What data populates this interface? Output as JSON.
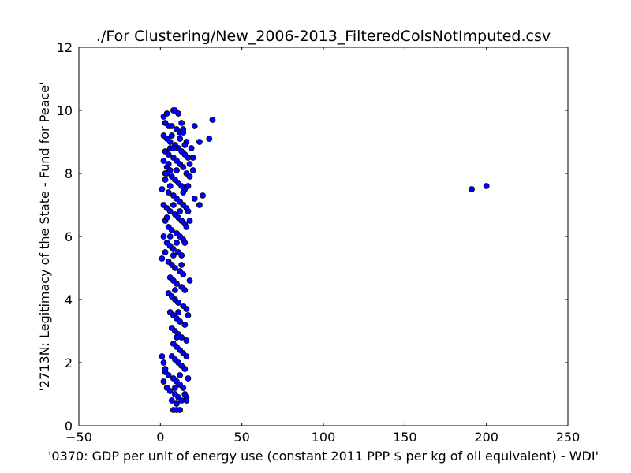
{
  "chart_data": {
    "type": "scatter",
    "title": "./For Clustering/New_2006-2013_FilteredColsNotImputed.csv",
    "xlabel": "'0370: GDP per unit of energy use  (constant 2011 PPP $ per kg of oil equivalent) - WDI'",
    "ylabel": "'2713N: Legitimacy of the State - Fund for Peace'",
    "xlim": [
      -50,
      250
    ],
    "ylim": [
      0,
      12
    ],
    "xticks": [
      -50,
      0,
      50,
      100,
      150,
      200,
      250
    ],
    "yticks": [
      0,
      2,
      4,
      6,
      8,
      10,
      12
    ],
    "grid": false,
    "marker_color": "#0000ff",
    "marker_edge": "#000000",
    "series": [
      {
        "points": [
          [
            191,
            7.5
          ],
          [
            200,
            7.6
          ],
          [
            32,
            9.7
          ],
          [
            30,
            9.1
          ],
          [
            24,
            9.0
          ],
          [
            21,
            9.5
          ],
          [
            26,
            7.3
          ],
          [
            24,
            7.0
          ],
          [
            21,
            7.2
          ],
          [
            20,
            8.1
          ],
          [
            19,
            8.8
          ],
          [
            18,
            8.3
          ],
          [
            20,
            8.5
          ],
          [
            18,
            6.5
          ],
          [
            17,
            6.8
          ],
          [
            18,
            4.6
          ],
          [
            8,
            10.0
          ],
          [
            9,
            10.0
          ],
          [
            2,
            9.8
          ],
          [
            3,
            9.6
          ],
          [
            5,
            9.5
          ],
          [
            7,
            9.5
          ],
          [
            10,
            9.4
          ],
          [
            12,
            9.3
          ],
          [
            14,
            9.4
          ],
          [
            16,
            9.0
          ],
          [
            2,
            9.2
          ],
          [
            4,
            9.1
          ],
          [
            6,
            9.0
          ],
          [
            9,
            8.9
          ],
          [
            11,
            8.8
          ],
          [
            13,
            8.7
          ],
          [
            15,
            8.6
          ],
          [
            17,
            8.5
          ],
          [
            3,
            8.7
          ],
          [
            5,
            8.6
          ],
          [
            8,
            8.5
          ],
          [
            10,
            8.4
          ],
          [
            12,
            8.3
          ],
          [
            14,
            8.2
          ],
          [
            2,
            8.4
          ],
          [
            4,
            8.2
          ],
          [
            6,
            8.1
          ],
          [
            16,
            8.0
          ],
          [
            7,
            7.9
          ],
          [
            9,
            7.8
          ],
          [
            11,
            7.7
          ],
          [
            13,
            7.6
          ],
          [
            15,
            7.5
          ],
          [
            3,
            7.8
          ],
          [
            1,
            7.5
          ],
          [
            5,
            7.4
          ],
          [
            8,
            7.3
          ],
          [
            10,
            7.2
          ],
          [
            12,
            7.1
          ],
          [
            14,
            7.0
          ],
          [
            16,
            6.9
          ],
          [
            2,
            7.0
          ],
          [
            4,
            6.9
          ],
          [
            6,
            6.8
          ],
          [
            9,
            6.7
          ],
          [
            11,
            6.6
          ],
          [
            13,
            6.5
          ],
          [
            15,
            6.4
          ],
          [
            3,
            6.5
          ],
          [
            5,
            6.3
          ],
          [
            7,
            6.2
          ],
          [
            10,
            6.1
          ],
          [
            12,
            6.0
          ],
          [
            14,
            5.9
          ],
          [
            2,
            6.0
          ],
          [
            4,
            5.8
          ],
          [
            6,
            5.7
          ],
          [
            8,
            5.6
          ],
          [
            11,
            5.5
          ],
          [
            13,
            5.4
          ],
          [
            3,
            5.5
          ],
          [
            1,
            5.3
          ],
          [
            5,
            5.2
          ],
          [
            7,
            5.1
          ],
          [
            9,
            5.0
          ],
          [
            12,
            4.9
          ],
          [
            14,
            4.8
          ],
          [
            6,
            4.7
          ],
          [
            8,
            4.6
          ],
          [
            10,
            4.5
          ],
          [
            13,
            4.4
          ],
          [
            15,
            4.3
          ],
          [
            5,
            4.2
          ],
          [
            7,
            4.1
          ],
          [
            9,
            4.0
          ],
          [
            11,
            3.9
          ],
          [
            14,
            3.8
          ],
          [
            16,
            3.7
          ],
          [
            6,
            3.6
          ],
          [
            8,
            3.5
          ],
          [
            10,
            3.4
          ],
          [
            12,
            3.3
          ],
          [
            15,
            3.2
          ],
          [
            7,
            3.1
          ],
          [
            9,
            3.0
          ],
          [
            11,
            2.9
          ],
          [
            13,
            2.8
          ],
          [
            16,
            2.7
          ],
          [
            8,
            2.6
          ],
          [
            10,
            2.5
          ],
          [
            12,
            2.4
          ],
          [
            14,
            2.3
          ],
          [
            7,
            2.2
          ],
          [
            9,
            2.1
          ],
          [
            11,
            2.0
          ],
          [
            13,
            1.9
          ],
          [
            15,
            1.8
          ],
          [
            3,
            1.7
          ],
          [
            5,
            1.6
          ],
          [
            8,
            1.5
          ],
          [
            10,
            1.4
          ],
          [
            12,
            1.3
          ],
          [
            14,
            1.2
          ],
          [
            2,
            1.4
          ],
          [
            4,
            1.2
          ],
          [
            6,
            1.1
          ],
          [
            9,
            1.0
          ],
          [
            11,
            0.9
          ],
          [
            13,
            0.8
          ],
          [
            16,
            0.9
          ],
          [
            7,
            0.8
          ],
          [
            10,
            0.7
          ],
          [
            8,
            0.5
          ],
          [
            10,
            0.5
          ],
          [
            12,
            0.5
          ],
          [
            15,
            1.0
          ],
          [
            1,
            2.2
          ],
          [
            2,
            2.0
          ],
          [
            3,
            1.8
          ],
          [
            17,
            3.5
          ],
          [
            16,
            2.2
          ],
          [
            17,
            1.5
          ],
          [
            16,
            0.8
          ],
          [
            15,
            5.8
          ],
          [
            16,
            6.3
          ],
          [
            17,
            7.6
          ],
          [
            18,
            7.9
          ],
          [
            15,
            8.9
          ],
          [
            14,
            9.3
          ],
          [
            13,
            9.6
          ],
          [
            11,
            9.9
          ],
          [
            4,
            9.9
          ],
          [
            6,
            8.8
          ],
          [
            4,
            8.0
          ],
          [
            6,
            7.6
          ],
          [
            8,
            7.0
          ],
          [
            4,
            6.6
          ],
          [
            6,
            6.0
          ],
          [
            8,
            5.4
          ],
          [
            10,
            5.8
          ],
          [
            9,
            4.3
          ],
          [
            11,
            3.6
          ],
          [
            10,
            2.8
          ],
          [
            12,
            1.6
          ],
          [
            9,
            1.2
          ],
          [
            13,
            5.1
          ],
          [
            12,
            6.8
          ],
          [
            14,
            7.4
          ],
          [
            10,
            8.1
          ],
          [
            8,
            8.8
          ],
          [
            12,
            9.1
          ],
          [
            7,
            9.2
          ],
          [
            5,
            8.3
          ],
          [
            3,
            8.0
          ]
        ]
      }
    ]
  }
}
